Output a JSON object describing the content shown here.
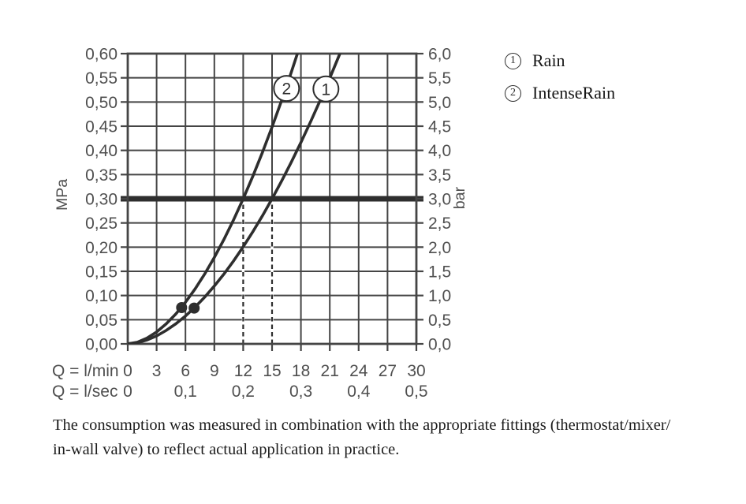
{
  "page": {
    "background": "#ffffff"
  },
  "legend": {
    "items": [
      {
        "symbol": "1",
        "label": "Rain"
      },
      {
        "symbol": "2",
        "label": "IntenseRain"
      }
    ]
  },
  "caption": {
    "line1": "The consumption was measured in combination with the appropriate fittings (thermostat/mixer/",
    "line2": "in-wall valve) to reflect actual application in practice."
  },
  "chart_data": {
    "type": "line",
    "title": "",
    "x_axis": {
      "caption_lmin": "Q = l/min",
      "caption_lsec": "Q = l/sec",
      "min": 0,
      "max": 30,
      "grid_step": 3,
      "ticks_lmin": [
        [
          0,
          "0"
        ],
        [
          3,
          "3"
        ],
        [
          6,
          "6"
        ],
        [
          9,
          "9"
        ],
        [
          12,
          "12"
        ],
        [
          15,
          "15"
        ],
        [
          18,
          "18"
        ],
        [
          21,
          "21"
        ],
        [
          24,
          "24"
        ],
        [
          27,
          "27"
        ],
        [
          30,
          "30"
        ]
      ],
      "ticks_lsec": [
        [
          0,
          "0"
        ],
        [
          6,
          "0,1"
        ],
        [
          12,
          "0,2"
        ],
        [
          18,
          "0,3"
        ],
        [
          24,
          "0,4"
        ],
        [
          30,
          "0,5"
        ]
      ]
    },
    "y_axis_left": {
      "unit": "MPa",
      "min": 0,
      "max": 0.6,
      "step": 0.05,
      "ticks": [
        [
          0.6,
          "0,60"
        ],
        [
          0.55,
          "0,55"
        ],
        [
          0.5,
          "0,50"
        ],
        [
          0.45,
          "0,45"
        ],
        [
          0.4,
          "0,40"
        ],
        [
          0.35,
          "0,35"
        ],
        [
          0.3,
          "0,30"
        ],
        [
          0.25,
          "0,25"
        ],
        [
          0.2,
          "0,20"
        ],
        [
          0.15,
          "0,15"
        ],
        [
          0.1,
          "0,10"
        ],
        [
          0.05,
          "0,05"
        ],
        [
          0.0,
          "0,00"
        ]
      ]
    },
    "y_axis_right": {
      "unit": "bar",
      "min": 0,
      "max": 6,
      "step": 0.5,
      "ticks": [
        [
          0.6,
          "6,0"
        ],
        [
          0.55,
          "5,5"
        ],
        [
          0.5,
          "5,0"
        ],
        [
          0.45,
          "4,5"
        ],
        [
          0.4,
          "4,0"
        ],
        [
          0.35,
          "3,5"
        ],
        [
          0.3,
          "3,0"
        ],
        [
          0.25,
          "2,5"
        ],
        [
          0.2,
          "2,0"
        ],
        [
          0.15,
          "1,5"
        ],
        [
          0.1,
          "1,0"
        ],
        [
          0.05,
          "0,5"
        ],
        [
          0.0,
          "0,0"
        ]
      ]
    },
    "reference_line": {
      "mpa": 0.3,
      "bar": 3.0
    },
    "drop_lines_lmin": [
      12,
      15
    ],
    "series": [
      {
        "num": "1",
        "name": "Rain",
        "flow_at_3_bar_lmin": 15,
        "points": [
          [
            0,
            0
          ],
          [
            1,
            0.0023
          ],
          [
            2,
            0.008
          ],
          [
            3,
            0.0165
          ],
          [
            4,
            0.0278
          ],
          [
            5,
            0.0415
          ],
          [
            6,
            0.0576
          ],
          [
            7,
            0.0761
          ],
          [
            8,
            0.0967
          ],
          [
            9,
            0.1196
          ],
          [
            10,
            0.1445
          ],
          [
            11,
            0.1715
          ],
          [
            12,
            0.2007
          ],
          [
            13,
            0.2318
          ],
          [
            14,
            0.2648
          ],
          [
            15,
            0.3
          ],
          [
            16,
            0.3368
          ],
          [
            17,
            0.3756
          ],
          [
            18,
            0.4164
          ],
          [
            19,
            0.4589
          ],
          [
            20,
            0.5033
          ],
          [
            21,
            0.5495
          ],
          [
            22,
            0.5975
          ],
          [
            23,
            0.6472
          ]
        ],
        "marker": {
          "q": 6.9,
          "mpa": 0.074
        },
        "badge": {
          "q": 20.6,
          "mpa": 0.527
        }
      },
      {
        "num": "2",
        "name": "IntenseRain",
        "flow_at_3_bar_lmin": 12,
        "points": [
          [
            0,
            0
          ],
          [
            1,
            0.0034
          ],
          [
            2,
            0.0119
          ],
          [
            3,
            0.0247
          ],
          [
            4,
            0.0415
          ],
          [
            5,
            0.062
          ],
          [
            6,
            0.0861
          ],
          [
            7,
            0.1137
          ],
          [
            8,
            0.1446
          ],
          [
            9,
            0.1787
          ],
          [
            10,
            0.216
          ],
          [
            11,
            0.2564
          ],
          [
            12,
            0.3
          ],
          [
            13,
            0.3464
          ],
          [
            14,
            0.3959
          ],
          [
            15,
            0.4484
          ],
          [
            16,
            0.5034
          ],
          [
            17,
            0.5615
          ],
          [
            18,
            0.6224
          ]
        ],
        "marker": {
          "q": 5.6,
          "mpa": 0.075
        },
        "badge": {
          "q": 16.5,
          "mpa": 0.528
        }
      }
    ],
    "colors": {
      "ink": "#2e2e2e",
      "grid": "#454545",
      "text": "#4f4f4f"
    }
  }
}
